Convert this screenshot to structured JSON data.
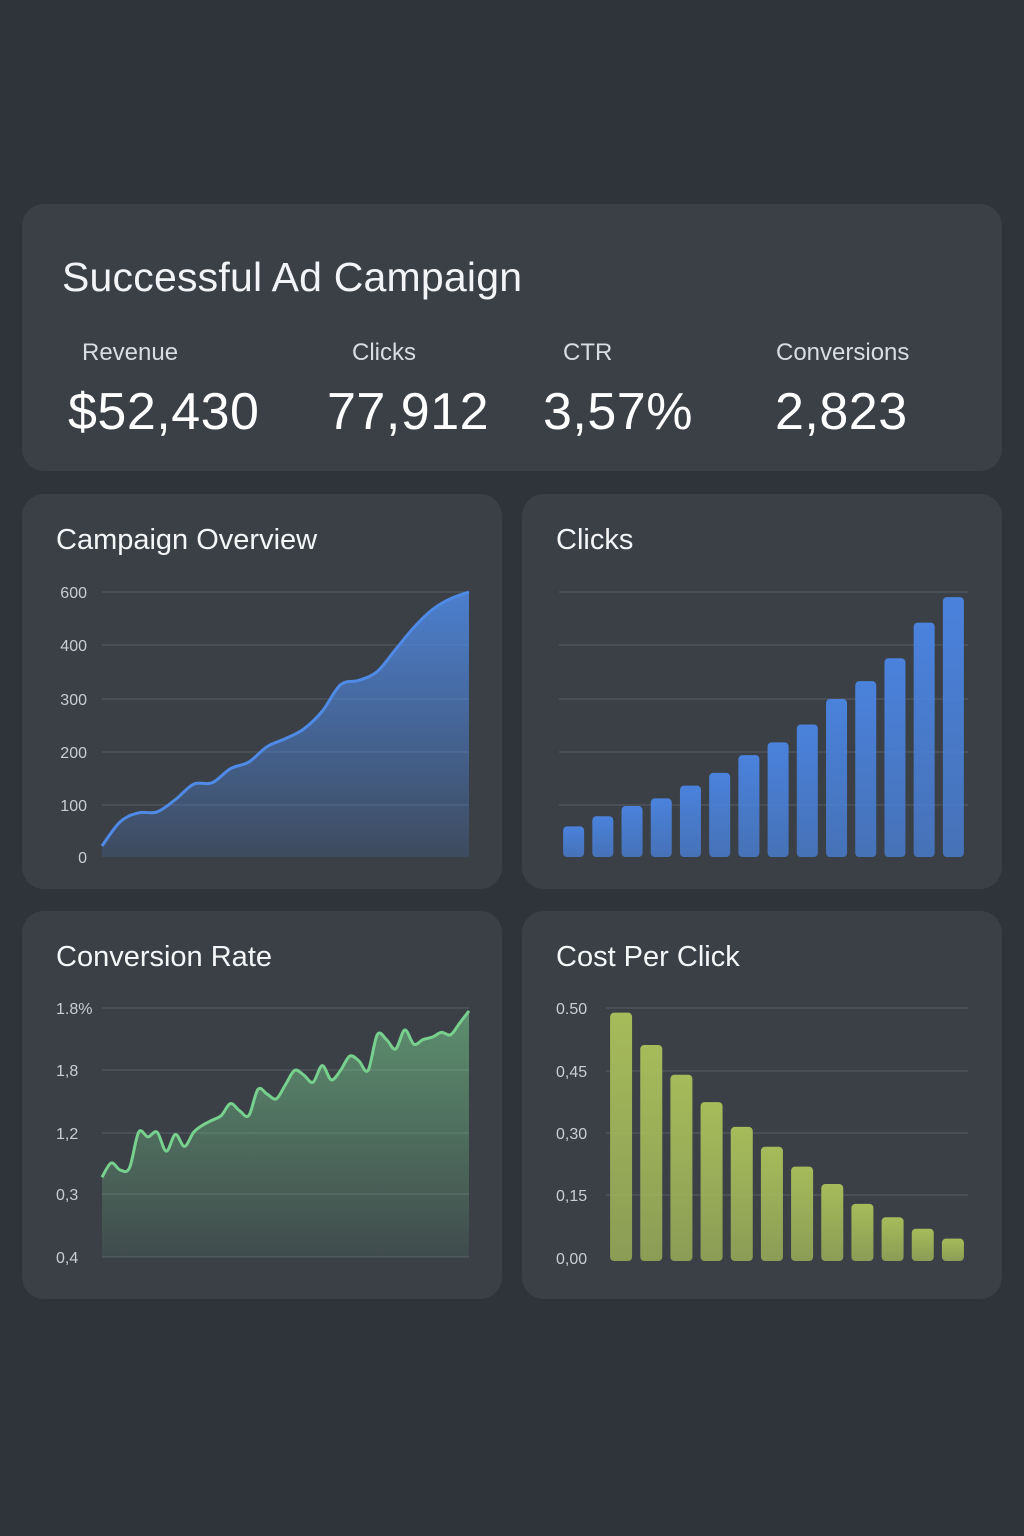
{
  "summary": {
    "title": "Successful Ad Campaign",
    "metrics": [
      {
        "label": "Revenue",
        "value": "$52,430"
      },
      {
        "label": "Clicks",
        "value": "77,912"
      },
      {
        "label": "CTR",
        "value": "3,57%"
      },
      {
        "label": "Conversions",
        "value": "2,823"
      }
    ]
  },
  "colors": {
    "background": "#2f343b",
    "card": "#3b4047",
    "blue": "#4f8ae6",
    "green": "#78d08e",
    "olive": "#a6bb5a"
  },
  "chart_data": [
    {
      "type": "area",
      "title": "Campaign Overview",
      "y_tick_labels": [
        "0",
        "100",
        "200",
        "300",
        "400",
        "600"
      ],
      "x": [
        0,
        1,
        2,
        3,
        4,
        5,
        6,
        7,
        8,
        9,
        10,
        11,
        12,
        13,
        14,
        15,
        16,
        17,
        18,
        19,
        20
      ],
      "values": [
        25,
        80,
        100,
        102,
        130,
        165,
        168,
        200,
        215,
        250,
        268,
        290,
        330,
        390,
        400,
        420,
        470,
        520,
        560,
        585,
        600
      ],
      "color": "#4f8ae6",
      "grid": true
    },
    {
      "type": "bar",
      "title": "Clicks",
      "values": [
        6,
        8,
        10,
        11.5,
        14,
        16.5,
        20,
        22.5,
        26,
        31,
        34.5,
        39,
        46,
        51
      ],
      "ylim": [
        0,
        52
      ],
      "color": "#4a82dc",
      "grid": true
    },
    {
      "type": "area",
      "title": "Conversion Rate",
      "y_tick_labels": [
        "0,4",
        "0,3",
        "1,2",
        "1,8",
        "1.8%"
      ],
      "x": [
        0,
        1,
        2,
        3,
        4,
        5,
        6,
        7,
        8,
        9,
        10,
        11,
        12,
        13,
        14,
        15,
        16,
        17,
        18,
        19,
        20,
        21,
        22,
        23,
        24,
        25,
        26,
        27,
        28,
        29,
        30,
        31,
        32,
        33,
        34,
        35,
        36,
        37,
        38,
        39,
        40
      ],
      "values": [
        0.5,
        0.62,
        0.56,
        0.58,
        0.88,
        0.84,
        0.88,
        0.72,
        0.86,
        0.76,
        0.88,
        0.94,
        0.98,
        1.02,
        1.12,
        1.06,
        1.02,
        1.24,
        1.2,
        1.16,
        1.28,
        1.4,
        1.36,
        1.3,
        1.44,
        1.32,
        1.4,
        1.52,
        1.48,
        1.4,
        1.7,
        1.66,
        1.58,
        1.74,
        1.62,
        1.66,
        1.68,
        1.72,
        1.7,
        1.8,
        1.9
      ],
      "color": "#78d08e",
      "grid": true
    },
    {
      "type": "bar",
      "title": "Cost Per Click",
      "y_tick_labels": [
        "0,00",
        "0,15",
        "0,30",
        "0,45",
        "0.50"
      ],
      "values": [
        0.5,
        0.435,
        0.375,
        0.32,
        0.27,
        0.23,
        0.19,
        0.155,
        0.115,
        0.088,
        0.065,
        0.045
      ],
      "ylim": [
        0,
        0.6
      ],
      "color": "#a6bb5a",
      "grid": true
    }
  ]
}
